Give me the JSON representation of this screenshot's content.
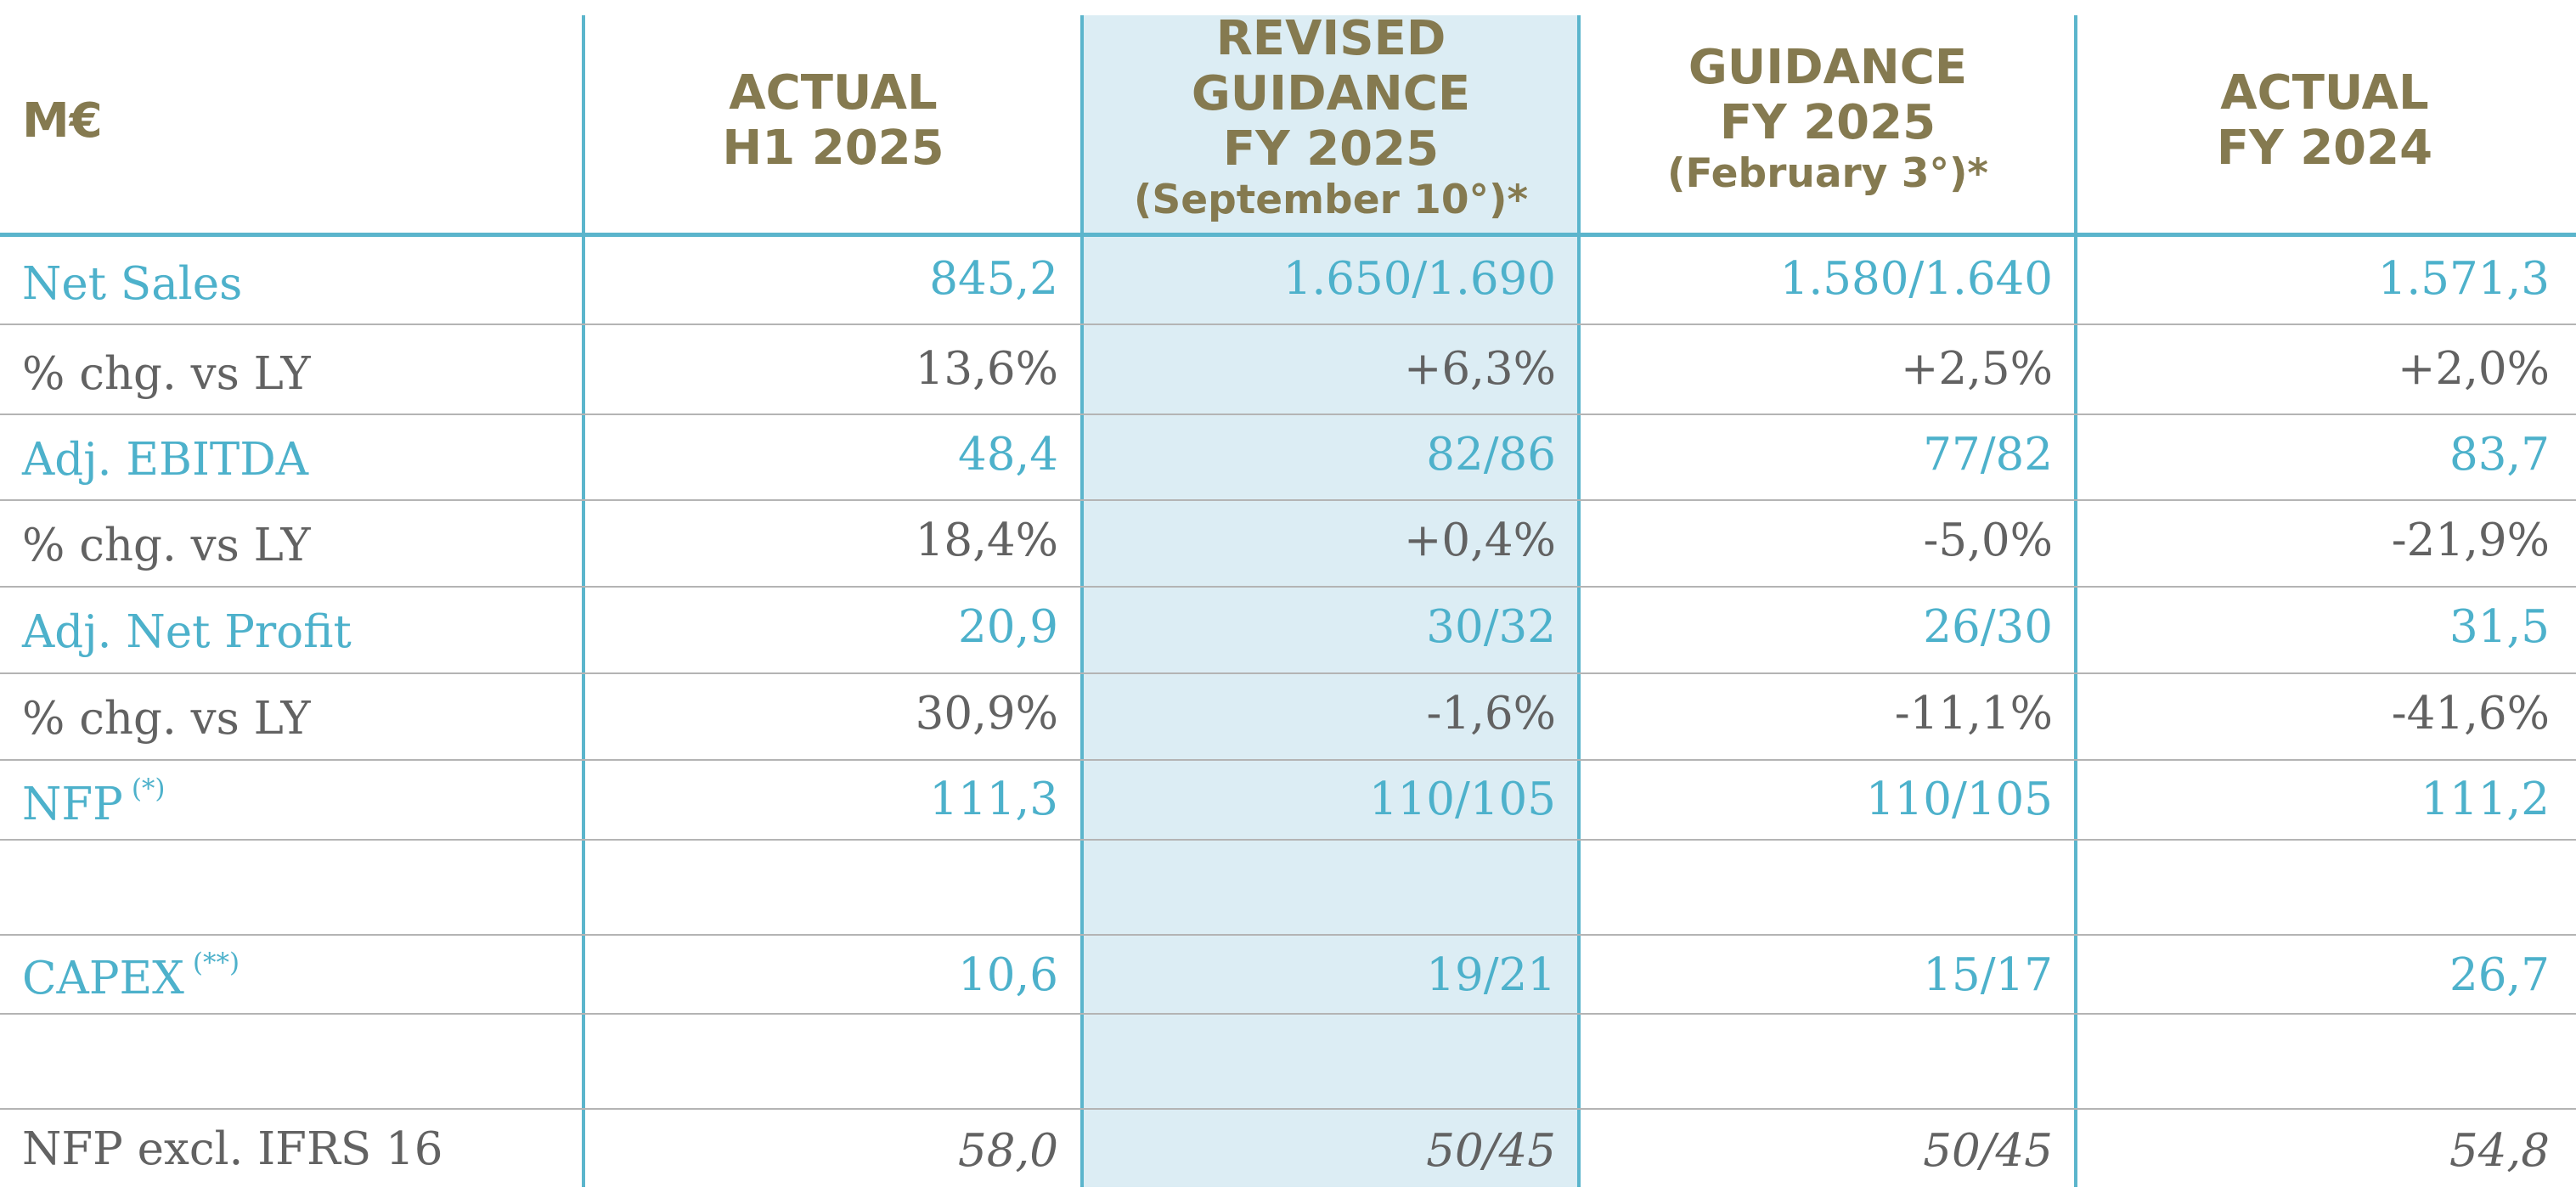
{
  "header": {
    "unit": "M€",
    "columns": [
      {
        "lines": [
          "ACTUAL",
          "H1 2025"
        ]
      },
      {
        "lines": [
          "REVISED",
          "GUIDANCE",
          "FY 2025",
          "(September 10°)*"
        ]
      },
      {
        "lines": [
          "GUIDANCE",
          "FY 2025",
          "(February 3°)*"
        ]
      },
      {
        "lines": [
          "ACTUAL",
          "FY 2024"
        ]
      }
    ]
  },
  "rows": [
    {
      "label": "Net Sales",
      "note": "",
      "values": [
        "845,2",
        "1.650/1.690",
        "1.580/1.640",
        "1.571,3"
      ]
    },
    {
      "label": "% chg. vs LY",
      "note": "",
      "values": [
        "13,6%",
        "+6,3%",
        "+2,5%",
        "+2,0%"
      ]
    },
    {
      "label": "Adj. EBITDA",
      "note": "",
      "values": [
        "48,4",
        "82/86",
        "77/82",
        "83,7"
      ]
    },
    {
      "label": "% chg. vs LY",
      "note": "",
      "values": [
        "18,4%",
        "+0,4%",
        "-5,0%",
        "-21,9%"
      ]
    },
    {
      "label": "Adj. Net Profit",
      "note": "",
      "values": [
        "20,9",
        "30/32",
        "26/30",
        "31,5"
      ]
    },
    {
      "label": "% chg. vs LY",
      "note": "",
      "values": [
        "30,9%",
        "-1,6%",
        "-11,1%",
        "-41,6%"
      ]
    },
    {
      "label": "NFP",
      "note": "(*)",
      "values": [
        "111,3",
        "110/105",
        "110/105",
        "111,2"
      ]
    },
    {
      "label": "CAPEX",
      "note": "(**)",
      "values": [
        "10,6",
        "19/21",
        "15/17",
        "26,7"
      ]
    },
    {
      "label": "NFP excl. IFRS 16",
      "note": "",
      "values": [
        "58,0",
        "50/45",
        "50/45",
        "54,8"
      ]
    }
  ],
  "colors": {
    "header_text": "#857a50",
    "highlight_text": "#4db1cb",
    "normal_text": "#626262",
    "highlight_column": "#dcedf4",
    "rule": "#5bb5cc"
  }
}
